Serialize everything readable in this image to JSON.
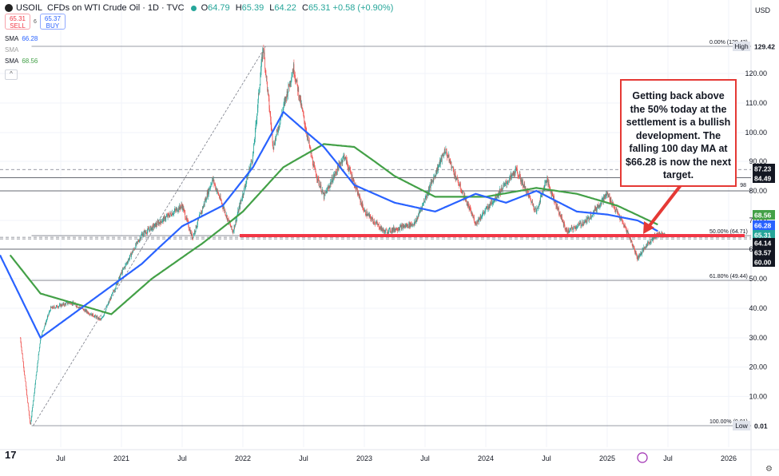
{
  "header": {
    "symbol": "USOIL",
    "title": "CFDs on WTI Crude Oil · 1D · TVC",
    "open_label": "O",
    "open": "64.79",
    "high_label": "H",
    "high": "65.39",
    "low_label": "L",
    "low": "64.22",
    "close_label": "C",
    "close": "65.31",
    "change": "+0.58 (+0.90%)",
    "currency": "USD"
  },
  "trade": {
    "sell_price": "65.31",
    "sell_label": "SELL",
    "spread": "6",
    "buy_price": "65.37",
    "buy_label": "BUY"
  },
  "indicators": [
    {
      "label": "SMA",
      "value": "66.28",
      "color": "#2962ff"
    },
    {
      "label": "SMA",
      "value": "",
      "color": "#9e9e9e"
    },
    {
      "label": "SMA",
      "value": "68.56",
      "color": "#43a047"
    }
  ],
  "annotation": "Getting back above the 50% today at the settlement is a bullish development. The falling 100 day MA at $66.28 is now the next target.",
  "colors": {
    "up": "#26a69a",
    "down": "#ef5350",
    "sma100": "#2962ff",
    "sma200": "#43a047",
    "key_level": "#f23645",
    "annotation_border": "#e53935"
  },
  "chart_data": {
    "type": "candlestick",
    "y_axis_ticks": [
      10,
      20,
      30,
      40,
      50,
      60,
      70,
      80,
      90,
      100,
      110,
      120
    ],
    "x_axis_ticks": [
      "Jul",
      "2021",
      "Jul",
      "2022",
      "Jul",
      "2023",
      "Jul",
      "2024",
      "Jul",
      "2025",
      "Jul",
      "2026"
    ],
    "ylim": [
      0.01,
      130
    ],
    "price_scale": "log",
    "price_path": [
      {
        "date": "2020-03",
        "price": 30
      },
      {
        "date": "2020-04",
        "price": 0.01
      },
      {
        "date": "2020-05",
        "price": 30
      },
      {
        "date": "2020-06",
        "price": 40
      },
      {
        "date": "2020-08",
        "price": 42
      },
      {
        "date": "2020-11",
        "price": 36
      },
      {
        "date": "2021-01",
        "price": 52
      },
      {
        "date": "2021-03",
        "price": 65
      },
      {
        "date": "2021-07",
        "price": 75
      },
      {
        "date": "2021-08",
        "price": 64
      },
      {
        "date": "2021-10",
        "price": 84
      },
      {
        "date": "2021-12",
        "price": 66
      },
      {
        "date": "2022-02",
        "price": 92
      },
      {
        "date": "2022-03",
        "price": 129.42
      },
      {
        "date": "2022-04",
        "price": 95
      },
      {
        "date": "2022-06",
        "price": 122
      },
      {
        "date": "2022-08",
        "price": 88
      },
      {
        "date": "2022-09",
        "price": 78
      },
      {
        "date": "2022-11",
        "price": 92
      },
      {
        "date": "2023-01",
        "price": 73
      },
      {
        "date": "2023-03",
        "price": 66
      },
      {
        "date": "2023-05",
        "price": 68
      },
      {
        "date": "2023-06",
        "price": 69
      },
      {
        "date": "2023-09",
        "price": 94
      },
      {
        "date": "2023-10",
        "price": 85
      },
      {
        "date": "2023-12",
        "price": 69
      },
      {
        "date": "2024-02",
        "price": 78
      },
      {
        "date": "2024-04",
        "price": 87
      },
      {
        "date": "2024-06",
        "price": 73
      },
      {
        "date": "2024-07",
        "price": 84
      },
      {
        "date": "2024-09",
        "price": 66
      },
      {
        "date": "2024-11",
        "price": 70
      },
      {
        "date": "2025-01",
        "price": 79
      },
      {
        "date": "2025-03",
        "price": 66
      },
      {
        "date": "2025-04",
        "price": 57
      },
      {
        "date": "2025-05",
        "price": 62
      },
      {
        "date": "2025-06",
        "price": 65.31
      }
    ],
    "sma100_path": [
      {
        "date": "2020-01",
        "price": 58
      },
      {
        "date": "2020-05",
        "price": 30
      },
      {
        "date": "2020-09",
        "price": 40
      },
      {
        "date": "2021-03",
        "price": 55
      },
      {
        "date": "2021-07",
        "price": 68
      },
      {
        "date": "2021-11",
        "price": 75
      },
      {
        "date": "2022-02",
        "price": 88
      },
      {
        "date": "2022-05",
        "price": 107
      },
      {
        "date": "2022-09",
        "price": 95
      },
      {
        "date": "2022-12",
        "price": 82
      },
      {
        "date": "2023-04",
        "price": 76
      },
      {
        "date": "2023-08",
        "price": 73
      },
      {
        "date": "2023-12",
        "price": 79
      },
      {
        "date": "2024-03",
        "price": 76
      },
      {
        "date": "2024-06",
        "price": 80
      },
      {
        "date": "2024-10",
        "price": 73
      },
      {
        "date": "2025-01",
        "price": 72
      },
      {
        "date": "2025-04",
        "price": 70
      },
      {
        "date": "2025-06",
        "price": 66.28
      }
    ],
    "sma200_path": [
      {
        "date": "2020-02",
        "price": 58
      },
      {
        "date": "2020-05",
        "price": 45
      },
      {
        "date": "2020-10",
        "price": 40
      },
      {
        "date": "2020-12",
        "price": 38
      },
      {
        "date": "2021-04",
        "price": 50
      },
      {
        "date": "2021-09",
        "price": 62
      },
      {
        "date": "2022-01",
        "price": 73
      },
      {
        "date": "2022-05",
        "price": 88
      },
      {
        "date": "2022-09",
        "price": 96
      },
      {
        "date": "2022-12",
        "price": 95
      },
      {
        "date": "2023-04",
        "price": 85
      },
      {
        "date": "2023-08",
        "price": 78
      },
      {
        "date": "2024-01",
        "price": 78
      },
      {
        "date": "2024-06",
        "price": 81
      },
      {
        "date": "2024-10",
        "price": 79
      },
      {
        "date": "2025-02",
        "price": 75
      },
      {
        "date": "2025-06",
        "price": 68.56
      }
    ],
    "fibonacci": [
      {
        "label": "0.00% (129.42)",
        "price": 129.42
      },
      {
        "label": "50.00% (64.71)",
        "price": 64.71
      },
      {
        "label": "61.80% (49.44)",
        "price": 49.44
      },
      {
        "label": "100.00% (0.01)",
        "price": 0.01
      }
    ],
    "key_level": 64.71,
    "horizontal_levels": [
      87.23,
      84.49,
      80,
      64.14,
      63.57,
      60.0
    ],
    "price_badges": [
      {
        "label": "High",
        "value": "129.42",
        "color": "#ffffff",
        "text": "#131722"
      },
      {
        "label": "",
        "value": "87.23",
        "color": "#131722",
        "text": "#ffffff"
      },
      {
        "label": "",
        "value": "84.49",
        "color": "#131722",
        "text": "#ffffff"
      },
      {
        "label": "",
        "value": "68.56",
        "color": "#43a047",
        "text": "#ffffff"
      },
      {
        "label": "",
        "value": "66.28",
        "color": "#2962ff",
        "text": "#ffffff"
      },
      {
        "label": "",
        "value": "65.31",
        "color": "#26a69a",
        "text": "#ffffff"
      },
      {
        "label": "",
        "value": "64.14",
        "color": "#131722",
        "text": "#ffffff"
      },
      {
        "label": "",
        "value": "63.57",
        "color": "#131722",
        "text": "#ffffff"
      },
      {
        "label": "",
        "value": "60.00",
        "color": "#131722",
        "text": "#ffffff"
      },
      {
        "label": "Low",
        "value": "0.01",
        "color": "#ffffff",
        "text": "#131722"
      }
    ],
    "partial_label": "98",
    "grid": true
  }
}
